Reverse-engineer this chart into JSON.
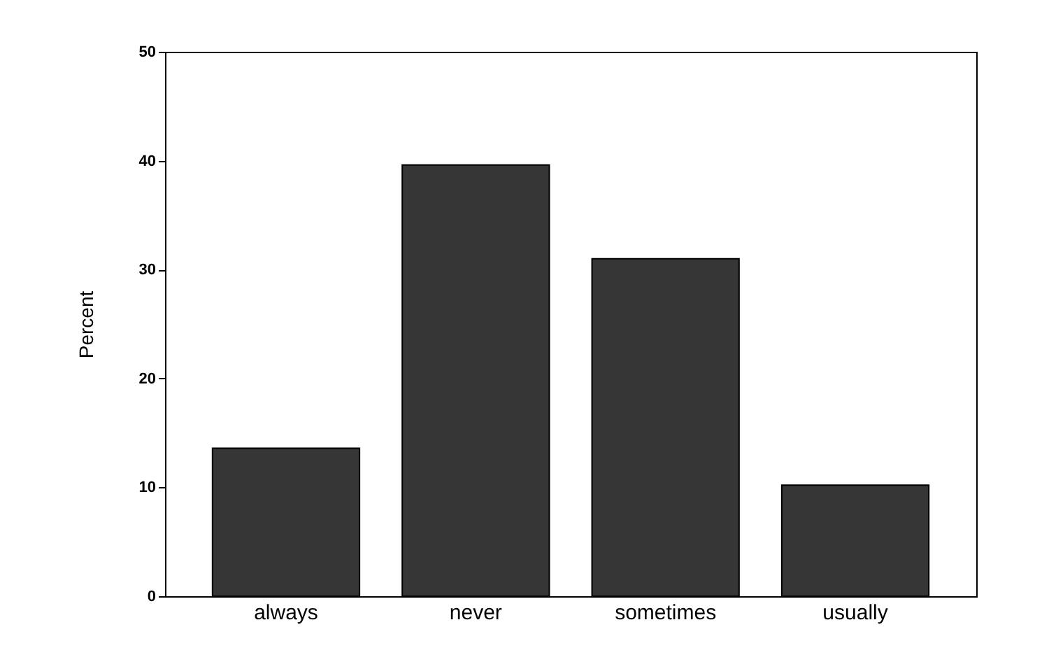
{
  "chart_data": {
    "type": "bar",
    "ylabel": "Percent",
    "categories": [
      "always",
      "never",
      "sometimes",
      "usually"
    ],
    "values": [
      13.6,
      39.6,
      31.0,
      10.2
    ],
    "color": "#363636",
    "ylim": [
      0,
      50
    ],
    "yticks": [
      0,
      10,
      20,
      30,
      40,
      50
    ],
    "grid": false
  }
}
